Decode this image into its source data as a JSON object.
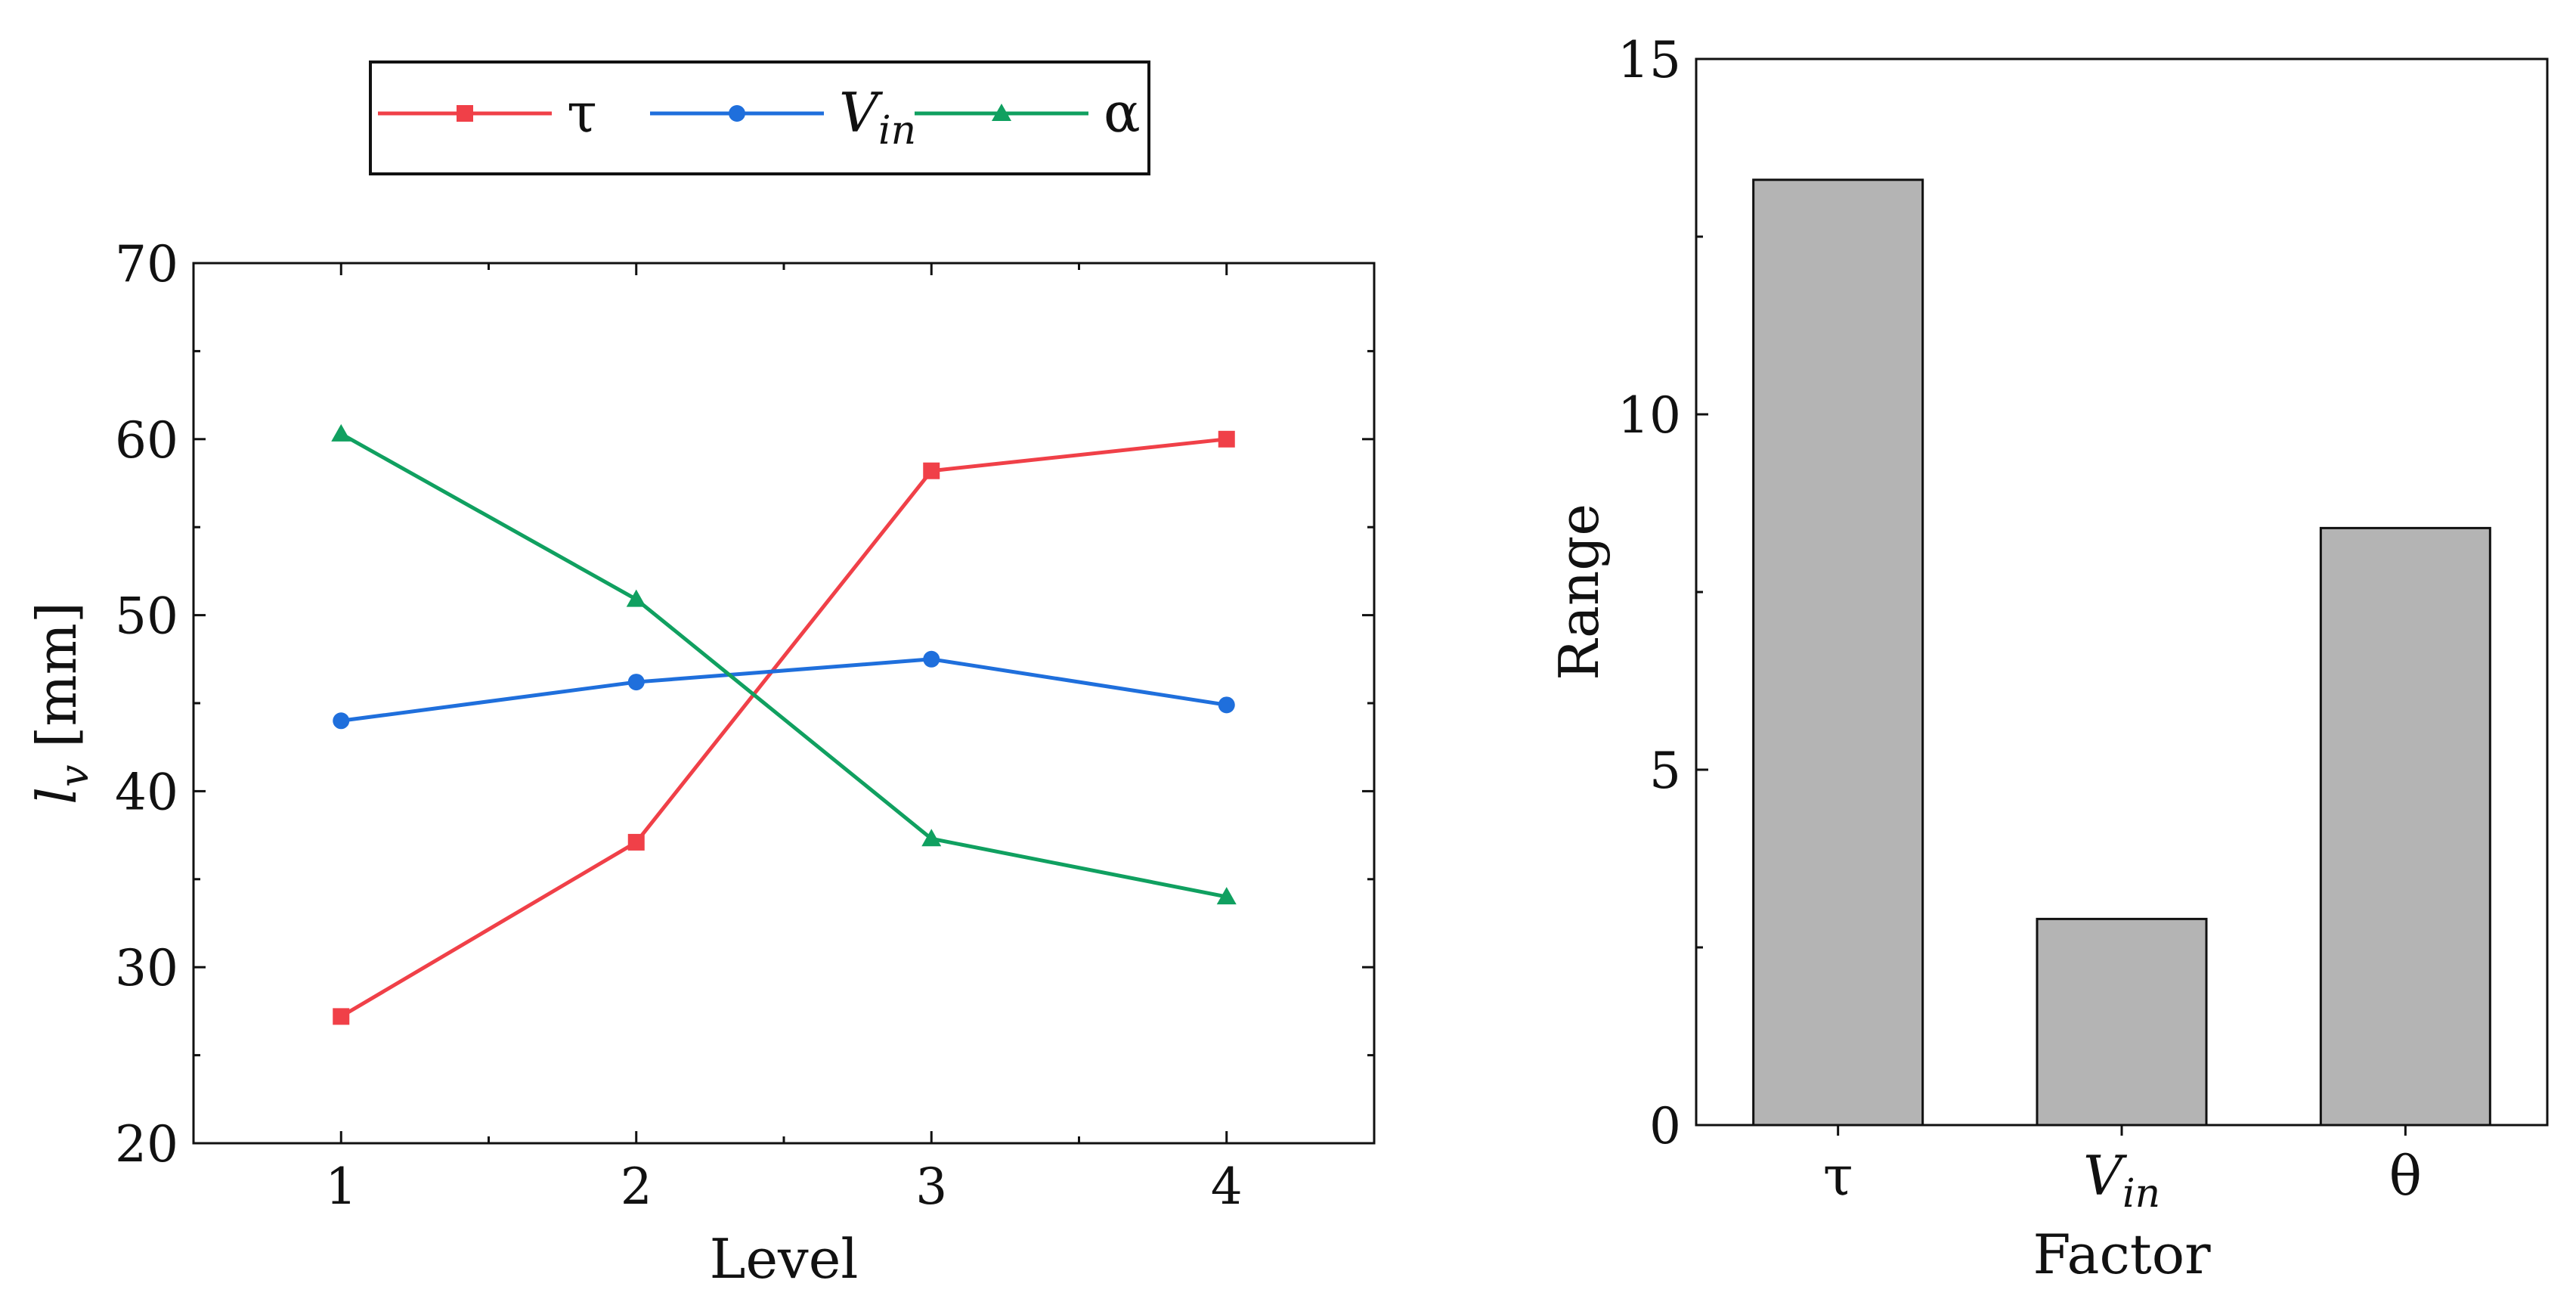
{
  "chart_data": [
    {
      "type": "line",
      "xlabel": "Level",
      "ylabel": {
        "main": "l",
        "sub": "v",
        "unit": "[mm]"
      },
      "x": [
        1,
        2,
        3,
        4
      ],
      "xlim": [
        0.5,
        4.5
      ],
      "ylim": [
        20,
        70
      ],
      "xticks": [
        1,
        2,
        3,
        4
      ],
      "yticks": [
        20,
        30,
        40,
        50,
        60,
        70
      ],
      "legend_position": "top",
      "series": [
        {
          "name": "τ",
          "values": [
            27.2,
            37.1,
            58.2,
            60.0
          ],
          "color": "#f04048",
          "marker": "square"
        },
        {
          "name": "V",
          "name_sub": "in",
          "values": [
            44.0,
            46.2,
            47.5,
            44.9
          ],
          "color": "#1f6fdc",
          "marker": "circle"
        },
        {
          "name": "α",
          "values": [
            60.3,
            50.9,
            37.3,
            34.0
          ],
          "color": "#10a060",
          "marker": "triangle"
        }
      ]
    },
    {
      "type": "bar",
      "xlabel": "Factor",
      "ylabel": "Range",
      "categories": [
        {
          "label": "τ",
          "sub": ""
        },
        {
          "label": "V",
          "sub": "in"
        },
        {
          "label": "θ",
          "sub": ""
        }
      ],
      "values": [
        13.3,
        2.9,
        8.4
      ],
      "ylim": [
        0,
        15
      ],
      "yticks": [
        0,
        5,
        10,
        15
      ],
      "bar_color": "#b4b4b4"
    }
  ]
}
